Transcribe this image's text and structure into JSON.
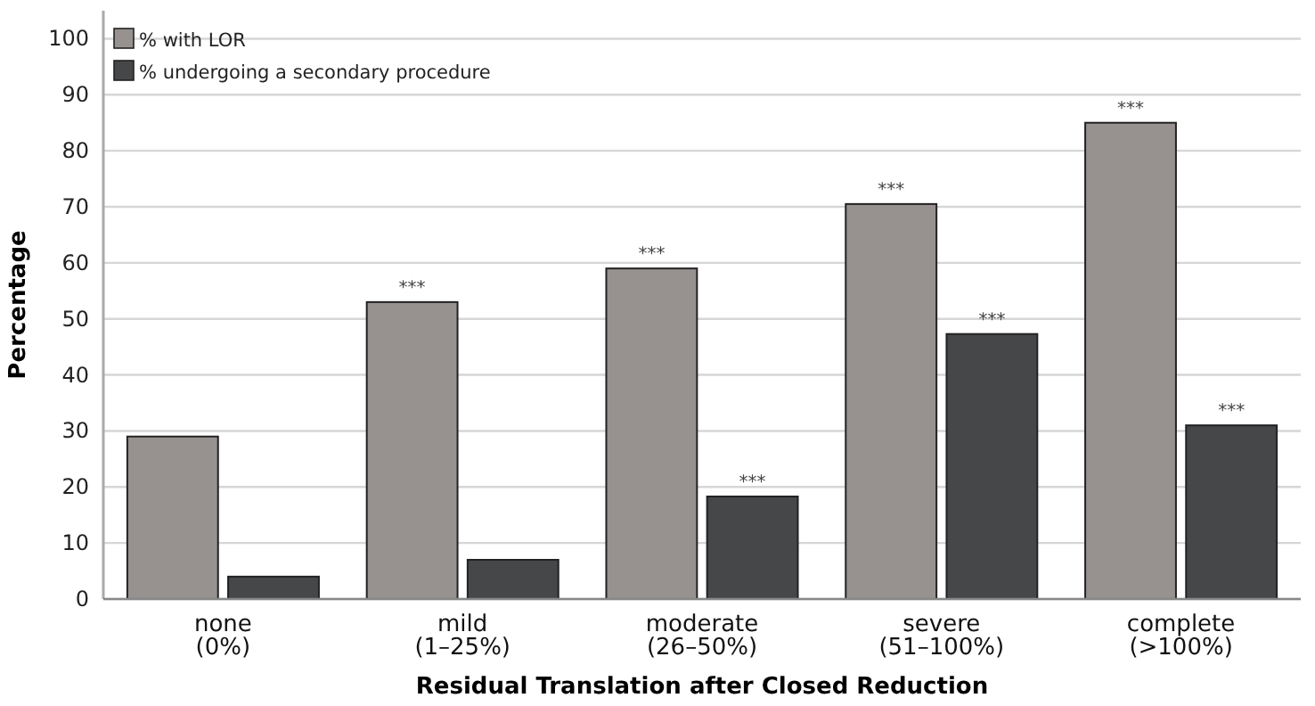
{
  "chart_data": {
    "type": "bar",
    "xlabel": "Residual Translation after Closed Reduction",
    "ylabel": "Percentage",
    "categories": [
      "none\n(0%)",
      "mild\n(1–25%)",
      "moderate\n(26–50%)",
      "severe\n(51–100%)",
      "complete\n(>100%)"
    ],
    "series": [
      {
        "name": "% with LOR",
        "color": "#979190",
        "values": [
          29,
          53,
          59,
          70.5,
          85
        ],
        "value_labels": [
          null,
          "***",
          "***",
          "***",
          "***"
        ]
      },
      {
        "name": "% undergoing a secondary procedure",
        "color": "#464749",
        "values": [
          4,
          7,
          18.3,
          47.3,
          31
        ],
        "value_labels": [
          null,
          null,
          "***",
          "***",
          "***"
        ]
      }
    ],
    "ylim": [
      0,
      105
    ],
    "yticks": [
      0,
      10,
      20,
      30,
      40,
      50,
      60,
      70,
      80,
      90,
      100
    ],
    "grid": "y",
    "legend": "top left"
  }
}
